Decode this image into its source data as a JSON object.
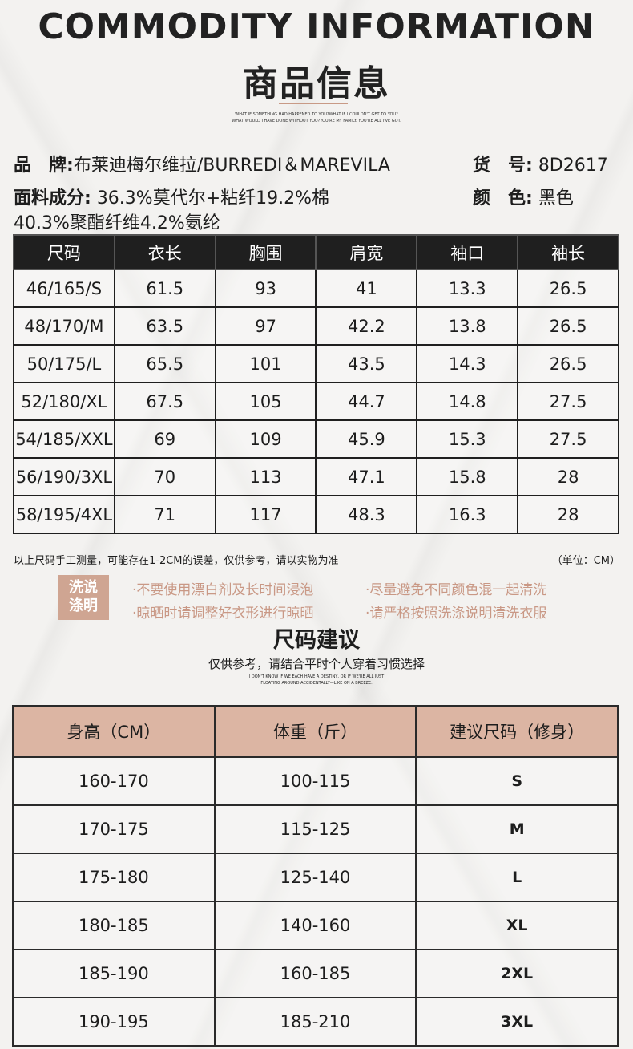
{
  "header": {
    "title_en": "COMMODITY INFORMATION",
    "title_cn": "商品信息",
    "tagline_1": "WHAT IF SOMETHING HAD HAPPENED TO YOU?WHAT IF I COULDN'T GET TO YOU?",
    "tagline_2": "WHAT WOULD I HAVE DONE WITHOUT YOU?YOU'RE MY FAMILY. YOU'RE ALL I'VE GOT."
  },
  "info": {
    "brand_label": "品　牌:",
    "brand_value": "布莱迪梅尔维拉/BURREDI＆MAREVILA",
    "sku_label": "货　号:",
    "sku_value": "8D2617",
    "fabric_label": "面料成分:",
    "fabric_value_1": "36.3%莫代尔+粘纤19.2%棉",
    "fabric_value_2": "40.3%聚酯纤维4.2%氨纶",
    "color_label": "颜　色:",
    "color_value": "黑色"
  },
  "size_table": {
    "headers": [
      "尺码",
      "衣长",
      "胸围",
      "肩宽",
      "袖口",
      "袖长"
    ],
    "rows": [
      [
        "46/165/S",
        "61.5",
        "93",
        "41",
        "13.3",
        "26.5"
      ],
      [
        "48/170/M",
        "63.5",
        "97",
        "42.2",
        "13.8",
        "26.5"
      ],
      [
        "50/175/L",
        "65.5",
        "101",
        "43.5",
        "14.3",
        "26.5"
      ],
      [
        "52/180/XL",
        "67.5",
        "105",
        "44.7",
        "14.8",
        "27.5"
      ],
      [
        "54/185/XXL",
        "69",
        "109",
        "45.9",
        "15.3",
        "27.5"
      ],
      [
        "56/190/3XL",
        "70",
        "113",
        "47.1",
        "15.8",
        "28"
      ],
      [
        "58/195/4XL",
        "71",
        "117",
        "48.3",
        "16.3",
        "28"
      ]
    ]
  },
  "notes": {
    "measure": "以上尺码手工测量，可能存在1-2CM的误差，仅供参考，请以实物为准",
    "unit": "（单位：CM）"
  },
  "wash": {
    "badge_1": "洗说",
    "badge_2": "涤明",
    "items": [
      "·不要使用漂白剂及长时间浸泡",
      "·尽量避免不同颜色混一起清洗",
      "·晾晒时请调整好衣形进行晾晒",
      "·请严格按照洗涤说明清洗衣服"
    ]
  },
  "recommend": {
    "title": "尺码建议",
    "subtitle": "仅供参考，请结合平时个人穿着习惯选择",
    "tagline_1": "I DON'T KNOW IF WE EACH HAVE A DESTINY, OR IF WE'RE ALL JUST",
    "tagline_2": "FLOATING AROUND ACCIDENTALLY—LIKE ON A BREEZE.",
    "headers": [
      "身高（CM）",
      "体重（斤）",
      "建议尺码（修身）"
    ],
    "rows": [
      [
        "160-170",
        "100-115",
        "S"
      ],
      [
        "170-175",
        "115-125",
        "M"
      ],
      [
        "175-180",
        "125-140",
        "L"
      ],
      [
        "180-185",
        "140-160",
        "XL"
      ],
      [
        "185-190",
        "160-185",
        "2XL"
      ],
      [
        "190-195",
        "185-210",
        "3XL"
      ]
    ]
  },
  "colors": {
    "accent": "#cfa592",
    "wash_text": "#c99885",
    "header_dark": "#1f1f1f",
    "header_peach": "#dcb5a3"
  }
}
